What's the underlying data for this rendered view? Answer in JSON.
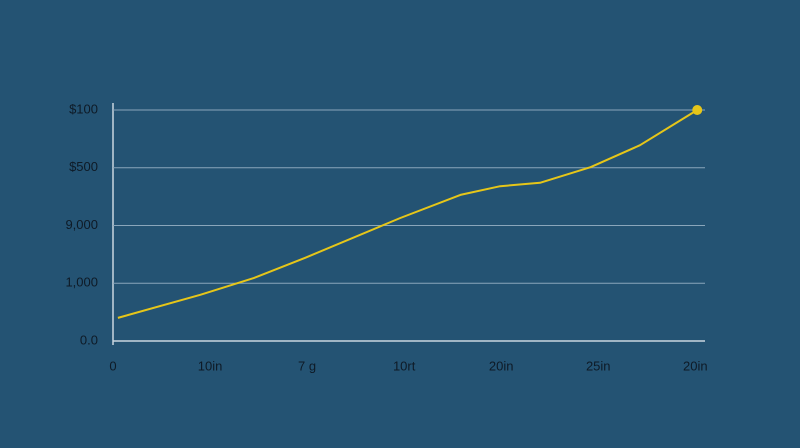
{
  "chart_data": {
    "type": "line",
    "x": [
      0.05,
      0.9,
      1.45,
      1.98,
      2.96,
      3.58,
      3.99,
      4.4,
      4.92,
      5.43,
      6.02
    ],
    "values": [
      0.4,
      0.8,
      1.09,
      1.44,
      2.13,
      2.53,
      2.68,
      2.74,
      3.01,
      3.39,
      4.0
    ],
    "color": "#e6c619",
    "end_marker": true,
    "grid": true,
    "xlim": [
      0,
      6.1
    ],
    "xticks": [
      {
        "value": 0,
        "label": "0"
      },
      {
        "value": 1,
        "label": "10in"
      },
      {
        "value": 2,
        "label": "7 g"
      },
      {
        "value": 3,
        "label": "10rt"
      },
      {
        "value": 4,
        "label": "20in"
      },
      {
        "value": 5,
        "label": "25in"
      },
      {
        "value": 6,
        "label": "20in"
      }
    ],
    "ylim": [
      0,
      4
    ],
    "yticks": [
      {
        "value": 0,
        "label": "0.0"
      },
      {
        "value": 1,
        "label": "1,000"
      },
      {
        "value": 2,
        "label": "9,000"
      },
      {
        "value": 3,
        "label": "$500"
      },
      {
        "value": 4,
        "label": "$100"
      }
    ]
  }
}
